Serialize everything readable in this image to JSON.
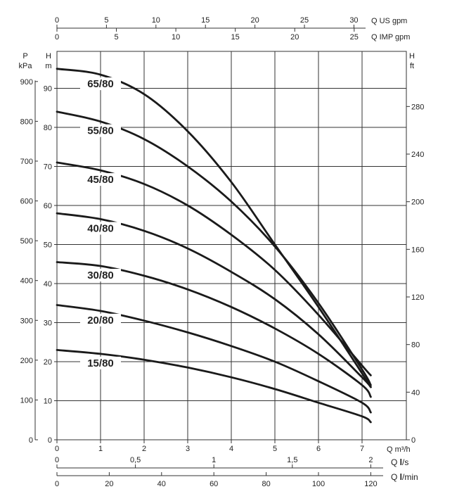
{
  "chart_data": {
    "type": "line",
    "x_unit_main": "Q m³/h",
    "x_range": [
      0,
      7.5
    ],
    "x_ticks": [
      "0",
      "1",
      "2",
      "3",
      "4",
      "5",
      "6",
      "7"
    ],
    "y_left_unit_top": "P",
    "y_left_unit_bottom": "kPa",
    "y_left_ticks": [
      "0",
      "100",
      "200",
      "300",
      "400",
      "500",
      "600",
      "700",
      "800",
      "900"
    ],
    "y_head_unit_top": "H",
    "y_head_unit_bottom": "m",
    "y_head_range": [
      0,
      100
    ],
    "y_head_ticks": [
      "0",
      "10",
      "20",
      "30",
      "40",
      "50",
      "60",
      "70",
      "80",
      "90"
    ],
    "y_right_unit_top": "H",
    "y_right_unit_bottom": "ft",
    "y_right_ticks": [
      "0",
      "40",
      "80",
      "120",
      "160",
      "200",
      "240",
      "280"
    ],
    "top_axes": [
      {
        "label": "Q US gpm",
        "ticks": [
          "0",
          "5",
          "10",
          "15",
          "20",
          "25",
          "30"
        ],
        "values": [
          0,
          5,
          10,
          15,
          20,
          25,
          30
        ],
        "m3h_per_unit": 0.22712
      },
      {
        "label": "Q IMP gpm",
        "ticks": [
          "0",
          "5",
          "10",
          "15",
          "20",
          "25"
        ],
        "values": [
          0,
          5,
          10,
          15,
          20,
          25
        ],
        "m3h_per_unit": 0.27277
      }
    ],
    "bottom_axes": [
      {
        "label_main": "Q ",
        "label_bold": "l",
        "label_tail": "/s",
        "ticks": [
          "0",
          "0,5",
          "1",
          "1,5",
          "2"
        ],
        "values": [
          0,
          0.5,
          1,
          1.5,
          2
        ],
        "m3h_per_unit": 3.6
      },
      {
        "label_main": "Q ",
        "label_bold": "l",
        "label_tail": "/min",
        "ticks": [
          "0",
          "20",
          "40",
          "60",
          "80",
          "100",
          "120"
        ],
        "values": [
          0,
          20,
          40,
          60,
          80,
          100,
          120
        ],
        "m3h_per_unit": 0.06
      }
    ],
    "series": [
      {
        "name": "65/80",
        "x": [
          0,
          1,
          2,
          3,
          4,
          5,
          6,
          7,
          7.2
        ],
        "y": [
          95,
          93.5,
          88.5,
          79,
          66,
          50,
          34,
          17,
          13.5
        ]
      },
      {
        "name": "55/80",
        "x": [
          0,
          1,
          2,
          3,
          4,
          5,
          6,
          7,
          7.2
        ],
        "y": [
          84,
          81.5,
          77,
          70,
          61,
          49.5,
          35,
          18,
          14
        ]
      },
      {
        "name": "45/80",
        "x": [
          0,
          1,
          2,
          3,
          4,
          5,
          6,
          7,
          7.2
        ],
        "y": [
          71,
          69,
          65.5,
          60,
          52.5,
          43.5,
          32,
          19,
          16.5
        ]
      },
      {
        "name": "40/80",
        "x": [
          0,
          1,
          2,
          3,
          4,
          5,
          6,
          7,
          7.2
        ],
        "y": [
          58,
          56.5,
          53.5,
          49,
          43,
          36,
          27,
          16,
          13.5
        ]
      },
      {
        "name": "30/80",
        "x": [
          0,
          1,
          2,
          3,
          4,
          5,
          6,
          7,
          7.2
        ],
        "y": [
          45.5,
          44.5,
          42,
          38.5,
          34,
          28.5,
          22,
          14,
          11
        ]
      },
      {
        "name": "20/80",
        "x": [
          0,
          1,
          2,
          3,
          4,
          5,
          6,
          7,
          7.2
        ],
        "y": [
          34.5,
          33,
          30.5,
          27.5,
          24,
          20,
          15,
          9.5,
          7
        ]
      },
      {
        "name": "15/80",
        "x": [
          0,
          1,
          2,
          3,
          4,
          5,
          6,
          7,
          7.2
        ],
        "y": [
          23,
          22,
          20.5,
          18.5,
          16,
          13,
          9.5,
          6,
          4.5
        ]
      }
    ],
    "grid": true,
    "legend": "inline labels on curves"
  }
}
